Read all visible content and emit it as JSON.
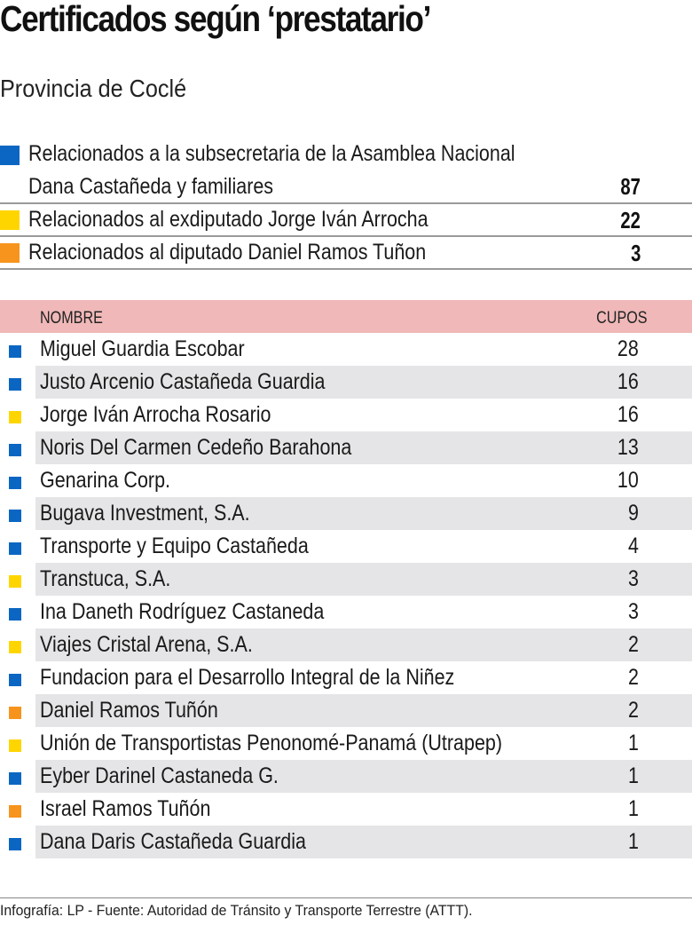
{
  "header": {
    "title": "Certificados según ‘prestatario’",
    "subtitle": "Provincia de Coclé"
  },
  "colors": {
    "blue": "#0a66c2",
    "yellow": "#ffd500",
    "orange": "#f7941d",
    "header_pink": "#f0b8b8",
    "row_shade": "#e5e5e7"
  },
  "legend": [
    {
      "label_line1": "Relacionados a la subsecretaria de la Asamblea Nacional",
      "label_line2": "Dana Castañeda y familiares",
      "value": "87",
      "color": "#0a66c2"
    },
    {
      "label_line1": "Relacionados al exdiputado Jorge Iván Arrocha",
      "value": "22",
      "color": "#ffd500"
    },
    {
      "label_line1": "Relacionados al diputado Daniel Ramos Tuñon",
      "value": "3",
      "color": "#f7941d"
    }
  ],
  "table": {
    "headers": {
      "name": "NOMBRE",
      "cupos": "CUPOS"
    },
    "rows": [
      {
        "name": "Miguel Guardia Escobar",
        "cupos": "28",
        "group": "blue"
      },
      {
        "name": "Justo Arcenio Castañeda Guardia",
        "cupos": "16",
        "group": "blue"
      },
      {
        "name": "Jorge Iván Arrocha Rosario",
        "cupos": "16",
        "group": "yellow"
      },
      {
        "name": "Noris Del Carmen Cedeño Barahona",
        "cupos": "13",
        "group": "blue"
      },
      {
        "name": "Genarina Corp.",
        "cupos": "10",
        "group": "blue"
      },
      {
        "name": "Bugava Investment, S.A.",
        "cupos": "9",
        "group": "blue"
      },
      {
        "name": "Transporte y Equipo Castañeda",
        "cupos": "4",
        "group": "blue"
      },
      {
        "name": "Transtuca, S.A.",
        "cupos": "3",
        "group": "yellow"
      },
      {
        "name": "Ina Daneth Rodríguez Castaneda",
        "cupos": "3",
        "group": "blue"
      },
      {
        "name": "Viajes Cristal Arena, S.A.",
        "cupos": "2",
        "group": "yellow"
      },
      {
        "name": "Fundacion para el Desarrollo Integral de la Niñez",
        "cupos": "2",
        "group": "blue"
      },
      {
        "name": "Daniel Ramos Tuñón",
        "cupos": "2",
        "group": "orange"
      },
      {
        "name": "Unión de Transportistas Penonomé-Panamá (Utrapep)",
        "cupos": "1",
        "group": "yellow"
      },
      {
        "name": "Eyber Darinel Castaneda G.",
        "cupos": "1",
        "group": "blue"
      },
      {
        "name": "Israel Ramos Tuñón",
        "cupos": "1",
        "group": "orange"
      },
      {
        "name": "Dana Daris Castañeda Guardia",
        "cupos": "1",
        "group": "blue"
      }
    ]
  },
  "footer": {
    "credit": "Infografía: LP - Fuente: Autoridad de Tránsito y Transporte Terrestre (ATTT)."
  },
  "chart_data": {
    "type": "table",
    "title": "Certificados según ‘prestatario’",
    "subtitle": "Provincia de Coclé",
    "legend": [
      {
        "name": "Relacionados a la subsecretaria de la Asamblea Nacional Dana Castañeda y familiares",
        "total": 87,
        "color": "#0a66c2"
      },
      {
        "name": "Relacionados al exdiputado Jorge Iván Arrocha",
        "total": 22,
        "color": "#ffd500"
      },
      {
        "name": "Relacionados al diputado Daniel Ramos Tuñon",
        "total": 3,
        "color": "#f7941d"
      }
    ],
    "columns": [
      "NOMBRE",
      "CUPOS"
    ],
    "categories": [
      "Miguel Guardia Escobar",
      "Justo Arcenio Castañeda Guardia",
      "Jorge Iván Arrocha Rosario",
      "Noris Del Carmen Cedeño Barahona",
      "Genarina Corp.",
      "Bugava Investment, S.A.",
      "Transporte y Equipo Castañeda",
      "Transtuca, S.A.",
      "Ina Daneth Rodríguez Castaneda",
      "Viajes Cristal Arena, S.A.",
      "Fundacion para el Desarrollo Integral de la Niñez",
      "Daniel Ramos Tuñón",
      "Unión de Transportistas Penonomé-Panamá (Utrapep)",
      "Eyber Darinel Castaneda G.",
      "Israel Ramos Tuñón",
      "Dana Daris Castañeda Guardia"
    ],
    "values": [
      28,
      16,
      16,
      13,
      10,
      9,
      4,
      3,
      3,
      2,
      2,
      2,
      1,
      1,
      1,
      1
    ],
    "groups": [
      "blue",
      "blue",
      "yellow",
      "blue",
      "blue",
      "blue",
      "blue",
      "yellow",
      "blue",
      "yellow",
      "blue",
      "orange",
      "yellow",
      "blue",
      "orange",
      "blue"
    ],
    "source": "Infografía: LP - Fuente: Autoridad de Tránsito y Transporte Terrestre (ATTT)."
  }
}
